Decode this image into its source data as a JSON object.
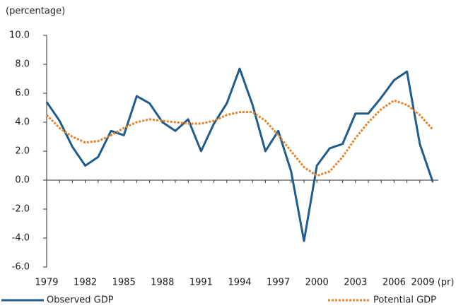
{
  "chart_data": {
    "type": "line",
    "y_label": "(percentage)",
    "categories": [
      "1979",
      null,
      null,
      "1982",
      null,
      null,
      "1985",
      null,
      null,
      "1988",
      null,
      null,
      "1991",
      null,
      null,
      "1994",
      null,
      null,
      "1997",
      null,
      null,
      "2000",
      null,
      null,
      "2003",
      null,
      null,
      "2006",
      null,
      null,
      "2009 (pr)"
    ],
    "series": [
      {
        "name": "Observed GDP",
        "color": "#1f5c8b",
        "style": "solid",
        "values": [
          5.4,
          4.1,
          2.3,
          1.0,
          1.6,
          3.4,
          3.1,
          5.8,
          5.3,
          4.0,
          3.4,
          4.2,
          2.0,
          3.9,
          5.3,
          7.7,
          5.2,
          2.0,
          3.4,
          0.6,
          -4.2,
          1.0,
          2.2,
          2.5,
          4.6,
          4.6,
          5.7,
          6.9,
          7.5,
          2.5,
          -0.1
        ]
      },
      {
        "name": "Potential GDP",
        "color": "#e8822a",
        "style": "dotted",
        "values": [
          4.5,
          3.6,
          3.0,
          2.6,
          2.7,
          3.1,
          3.6,
          4.0,
          4.2,
          4.1,
          4.0,
          3.9,
          3.9,
          4.1,
          4.5,
          4.7,
          4.7,
          4.1,
          3.1,
          2.0,
          0.9,
          0.3,
          0.6,
          1.6,
          2.9,
          4.0,
          4.9,
          5.5,
          5.2,
          4.5,
          3.5
        ]
      }
    ],
    "ylim": [
      -6,
      10
    ],
    "yticks": [
      {
        "value": -6,
        "label": "-6.0"
      },
      {
        "value": -4,
        "label": "-4.0"
      },
      {
        "value": -2,
        "label": "-2.0"
      },
      {
        "value": 0,
        "label": "0.0"
      },
      {
        "value": 2,
        "label": "2.0"
      },
      {
        "value": 4,
        "label": "4.0"
      },
      {
        "value": 6,
        "label": "6.0"
      },
      {
        "value": 8,
        "label": "8.0"
      },
      {
        "value": 10,
        "label": "10.0"
      }
    ],
    "grid": false
  }
}
